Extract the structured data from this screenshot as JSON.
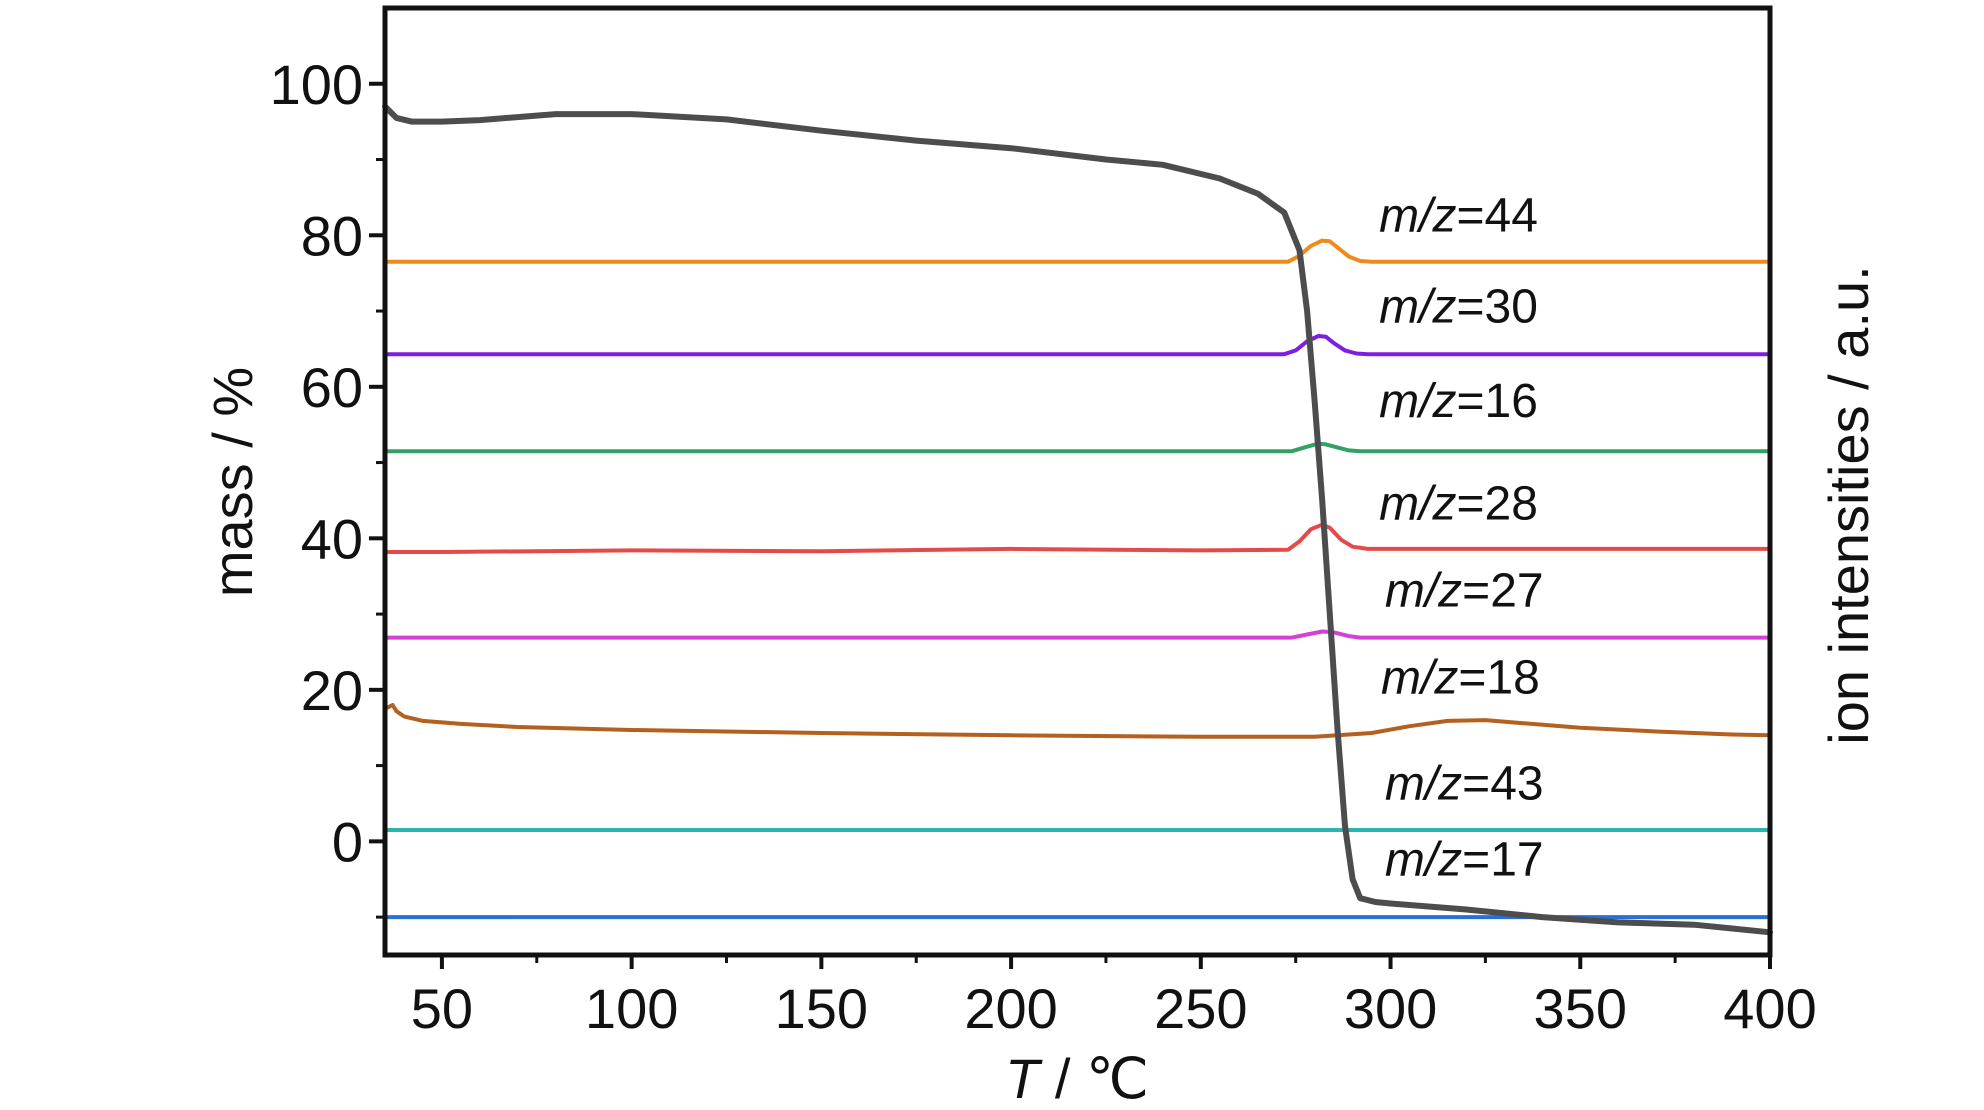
{
  "chart_data": {
    "type": "line",
    "xlabel": {
      "italic": "T",
      "rest": " / ℃"
    },
    "ylabel_left": "mass / %",
    "ylabel_right": "ion intensities / a.u.",
    "xlim": [
      35,
      400
    ],
    "ylim": [
      -15,
      110
    ],
    "xticks": [
      50,
      100,
      150,
      200,
      250,
      300,
      350,
      400
    ],
    "yticks": [
      0,
      20,
      40,
      60,
      80,
      100
    ],
    "grid": false,
    "series": [
      {
        "color": "#4d4d4f",
        "stroke_width": 6,
        "x": [
          35,
          38,
          42,
          50,
          60,
          80,
          100,
          125,
          150,
          175,
          200,
          225,
          240,
          255,
          265,
          272,
          276,
          278,
          280,
          282,
          284,
          286,
          288,
          290,
          292,
          296,
          300,
          320,
          340,
          360,
          380,
          390,
          400
        ],
        "y": [
          97,
          95.5,
          95,
          95,
          95.2,
          96,
          96,
          95.3,
          93.8,
          92.5,
          91.5,
          90,
          89.3,
          87.5,
          85.5,
          83,
          78,
          70,
          58,
          45,
          30,
          15,
          2,
          -5,
          -7.5,
          -8,
          -8.2,
          -9,
          -10,
          -10.7,
          -11,
          -11.5,
          -12
        ]
      },
      {
        "name": "m/z=44",
        "color": "#f08a1a",
        "stroke_width": 4,
        "x": [
          35,
          273,
          276,
          279,
          282,
          284,
          286,
          289,
          292,
          295,
          400
        ],
        "y": [
          76.5,
          76.5,
          77.3,
          78.6,
          79.3,
          79.2,
          78.4,
          77.2,
          76.6,
          76.5,
          76.5
        ]
      },
      {
        "name": "m/z=30",
        "color": "#7e1fe0",
        "stroke_width": 4,
        "x": [
          35,
          272,
          275,
          278,
          281,
          283,
          285,
          288,
          291,
          294,
          400
        ],
        "y": [
          64.3,
          64.3,
          64.8,
          66,
          66.7,
          66.6,
          65.8,
          64.8,
          64.4,
          64.3,
          64.3
        ]
      },
      {
        "name": "m/z=16",
        "color": "#33a065",
        "stroke_width": 4,
        "x": [
          35,
          274,
          278,
          281,
          283,
          286,
          289,
          292,
          400
        ],
        "y": [
          51.5,
          51.5,
          52.1,
          52.5,
          52.4,
          52,
          51.6,
          51.5,
          51.5
        ]
      },
      {
        "name": "m/z=28",
        "color": "#e44a4a",
        "stroke_width": 4,
        "x": [
          35,
          50,
          100,
          150,
          200,
          250,
          273,
          276,
          279,
          282,
          284,
          287,
          290,
          294,
          300,
          400
        ],
        "y": [
          38.2,
          38.2,
          38.4,
          38.3,
          38.6,
          38.4,
          38.5,
          39.6,
          41.2,
          41.8,
          41.4,
          39.8,
          38.9,
          38.6,
          38.6,
          38.6
        ]
      },
      {
        "name": "m/z=27",
        "color": "#d540d5",
        "stroke_width": 4,
        "x": [
          35,
          274,
          278,
          282,
          285,
          289,
          292,
          400
        ],
        "y": [
          26.9,
          26.9,
          27.3,
          27.7,
          27.6,
          27.1,
          26.9,
          26.9
        ]
      },
      {
        "name": "m/z=18",
        "color": "#b4601e",
        "stroke_width": 4,
        "x": [
          35,
          37,
          38,
          40,
          45,
          55,
          70,
          100,
          150,
          200,
          250,
          280,
          295,
          305,
          315,
          325,
          335,
          350,
          370,
          390,
          400
        ],
        "y": [
          17.5,
          18,
          17.2,
          16.5,
          15.9,
          15.5,
          15.1,
          14.7,
          14.3,
          14,
          13.8,
          13.8,
          14.3,
          15.2,
          15.9,
          16,
          15.6,
          15,
          14.5,
          14.1,
          14
        ]
      },
      {
        "name": "m/z=43",
        "color": "#2ab5b0",
        "stroke_width": 4,
        "x": [
          35,
          400
        ],
        "y": [
          1.5,
          1.5
        ]
      },
      {
        "name": "m/z=17",
        "color": "#2a6fd6",
        "stroke_width": 4,
        "x": [
          35,
          400
        ],
        "y": [
          -10,
          -10
        ]
      }
    ],
    "annotations": [
      {
        "series": "m/z=44",
        "prefix": "m/z",
        "suffix": "=44",
        "x": 297,
        "y": 80.5
      },
      {
        "series": "m/z=30",
        "prefix": "m/z",
        "suffix": "=30",
        "x": 297,
        "y": 68.5
      },
      {
        "series": "m/z=16",
        "prefix": "m/z",
        "suffix": "=16",
        "x": 297,
        "y": 56
      },
      {
        "series": "m/z=28",
        "prefix": "m/z",
        "suffix": "=28",
        "x": 297,
        "y": 42.5
      },
      {
        "series": "m/z=27",
        "prefix": "m/z",
        "suffix": "=27",
        "x": 298.5,
        "y": 31
      },
      {
        "series": "m/z=18",
        "prefix": "m/z",
        "suffix": "=18",
        "x": 297.5,
        "y": 19.5
      },
      {
        "series": "m/z=43",
        "prefix": "m/z",
        "suffix": "=43",
        "x": 298.5,
        "y": 5.5
      },
      {
        "series": "m/z=17",
        "prefix": "m/z",
        "suffix": "=17",
        "x": 298.5,
        "y": -4.5
      }
    ]
  }
}
